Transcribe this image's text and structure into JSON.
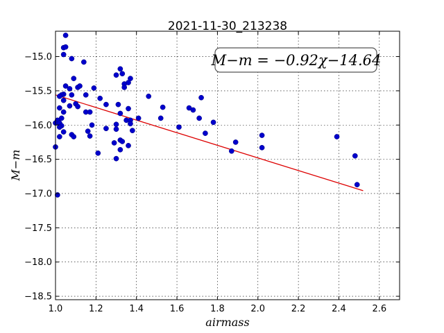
{
  "chart_data": {
    "type": "scatter",
    "title": "2021-11-30_213238",
    "xlabel": "airmass",
    "ylabel": "M−m",
    "xlim": [
      1.0,
      2.7
    ],
    "ylim": [
      -18.55,
      -14.63
    ],
    "xticks": [
      "1.0",
      "1.2",
      "1.4",
      "1.6",
      "1.8",
      "2.0",
      "2.2",
      "2.4",
      "2.6"
    ],
    "yticks": [
      "−15.0",
      "−15.5",
      "−16.0",
      "−16.5",
      "−17.0",
      "−17.5",
      "−18.0",
      "−18.5"
    ],
    "grid": true,
    "annotation": "M−m = −0.92χ−14.64",
    "fit": {
      "slope": -0.92,
      "intercept": -14.64,
      "x_range": [
        1.0,
        2.52
      ],
      "color": "#dd0000"
    },
    "marker_color": "#0000cc",
    "points": [
      [
        1.05,
        -14.69
      ],
      [
        1.04,
        -14.87
      ],
      [
        1.05,
        -14.86
      ],
      [
        1.04,
        -14.97
      ],
      [
        1.08,
        -15.03
      ],
      [
        1.14,
        -15.08
      ],
      [
        1.3,
        -15.27
      ],
      [
        1.32,
        -15.18
      ],
      [
        1.33,
        -15.25
      ],
      [
        1.37,
        -15.32
      ],
      [
        1.36,
        -15.38
      ],
      [
        1.34,
        -15.4
      ],
      [
        1.34,
        -15.45
      ],
      [
        1.09,
        -15.32
      ],
      [
        1.11,
        -15.45
      ],
      [
        1.12,
        -15.43
      ],
      [
        1.05,
        -15.43
      ],
      [
        1.07,
        -15.47
      ],
      [
        1.04,
        -15.55
      ],
      [
        1.03,
        -15.56
      ],
      [
        1.02,
        -15.58
      ],
      [
        1.04,
        -15.64
      ],
      [
        1.08,
        -15.56
      ],
      [
        1.15,
        -15.56
      ],
      [
        1.19,
        -15.46
      ],
      [
        1.22,
        -15.61
      ],
      [
        1.1,
        -15.69
      ],
      [
        1.11,
        -15.73
      ],
      [
        1.07,
        -15.72
      ],
      [
        1.02,
        -15.75
      ],
      [
        1.04,
        -15.81
      ],
      [
        1.15,
        -15.81
      ],
      [
        1.17,
        -15.81
      ],
      [
        1.25,
        -15.7
      ],
      [
        1.31,
        -15.7
      ],
      [
        1.32,
        -15.83
      ],
      [
        1.36,
        -15.76
      ],
      [
        1.46,
        -15.58
      ],
      [
        1.53,
        -15.74
      ],
      [
        1.35,
        -15.93
      ],
      [
        1.37,
        -15.93
      ],
      [
        1.41,
        -15.9
      ],
      [
        1.52,
        -15.9
      ],
      [
        1.66,
        -15.75
      ],
      [
        1.68,
        -15.78
      ],
      [
        1.72,
        -15.6
      ],
      [
        1.71,
        -15.9
      ],
      [
        1.74,
        -16.12
      ],
      [
        1.78,
        -15.96
      ],
      [
        1.61,
        -16.03
      ],
      [
        1.01,
        -15.93
      ],
      [
        1.0,
        -15.97
      ],
      [
        1.02,
        -15.97
      ],
      [
        1.03,
        -15.9
      ],
      [
        1.03,
        -16.01
      ],
      [
        1.02,
        -16.03
      ],
      [
        1.18,
        -16.0
      ],
      [
        1.25,
        -16.05
      ],
      [
        1.3,
        -15.99
      ],
      [
        1.3,
        -16.06
      ],
      [
        1.37,
        -15.98
      ],
      [
        1.38,
        -16.08
      ],
      [
        1.04,
        -16.1
      ],
      [
        1.08,
        -16.14
      ],
      [
        1.09,
        -16.17
      ],
      [
        1.16,
        -16.09
      ],
      [
        1.17,
        -16.16
      ],
      [
        1.02,
        -16.17
      ],
      [
        1.29,
        -16.26
      ],
      [
        1.32,
        -16.22
      ],
      [
        1.33,
        -16.24
      ],
      [
        1.36,
        -16.3
      ],
      [
        1.0,
        -16.32
      ],
      [
        1.32,
        -16.36
      ],
      [
        1.21,
        -16.41
      ],
      [
        1.3,
        -16.49
      ],
      [
        1.87,
        -16.38
      ],
      [
        1.89,
        -16.25
      ],
      [
        2.02,
        -16.15
      ],
      [
        2.02,
        -16.33
      ],
      [
        2.39,
        -16.17
      ],
      [
        2.48,
        -16.45
      ],
      [
        2.49,
        -16.87
      ],
      [
        1.01,
        -17.02
      ]
    ]
  }
}
